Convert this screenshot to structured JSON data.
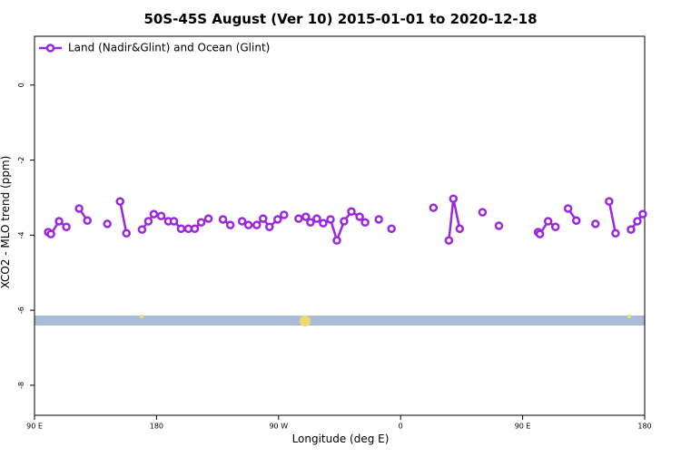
{
  "chart_data": {
    "type": "line",
    "title": "50S-45S August (Ver 10)   2015-01-01 to 2020-12-18",
    "x_label": "Longitude (deg E)",
    "y_label": "XCO2 - MLO trend (ppm)",
    "xlim": [
      90,
      540
    ],
    "ylim": [
      -8.8,
      1.3
    ],
    "xticks": [
      {
        "value": 90,
        "label": "90 E"
      },
      {
        "value": 180,
        "label": "180"
      },
      {
        "value": 270,
        "label": "90 W"
      },
      {
        "value": 360,
        "label": "0"
      },
      {
        "value": 450,
        "label": "90 E"
      },
      {
        "value": 540,
        "label": "180"
      }
    ],
    "yticks": [
      0,
      -2,
      -4,
      -6,
      -8
    ],
    "legend": "top-left",
    "series": [
      {
        "name": "Land (Nadir&Glint) and Ocean (Glint)",
        "color": "#9b27e0",
        "x": [
          100.1,
          102.1,
          108.1,
          113.5,
          null,
          122.9,
          129.0,
          null,
          143.7,
          null,
          153.1,
          157.8,
          null,
          169.3,
          174.0,
          178.0,
          183.4,
          188.7,
          192.8,
          198.1,
          203.5,
          208.2,
          212.9,
          218.3,
          null,
          229.0,
          234.4,
          null,
          243.1,
          247.8,
          253.9,
          258.6,
          263.3,
          269.3,
          274.0,
          null,
          284.8,
          290.1,
          293.5,
          298.2,
          302.9,
          308.3,
          313.0,
          318.3,
          323.7,
          329.8,
          333.8,
          null,
          343.9,
          null,
          353.3,
          null,
          384.2,
          null,
          395.6,
          398.9,
          403.6,
          null,
          420.4,
          null,
          432.5,
          null,
          461.4,
          462.7,
          468.8,
          474.2,
          null,
          483.5,
          489.6,
          null,
          503.7,
          null,
          513.8,
          518.5,
          null,
          529.9,
          534.6,
          538.6
        ],
        "values": [
          -3.92,
          -3.97,
          -3.63,
          -3.78,
          null,
          -3.29,
          -3.61,
          null,
          -3.7,
          null,
          -3.1,
          -3.95,
          null,
          -3.85,
          -3.63,
          -3.44,
          -3.49,
          -3.63,
          -3.63,
          -3.83,
          -3.83,
          -3.83,
          -3.66,
          -3.56,
          null,
          -3.58,
          -3.73,
          null,
          -3.63,
          -3.73,
          -3.73,
          -3.56,
          -3.78,
          -3.58,
          -3.46,
          null,
          -3.56,
          -3.51,
          -3.66,
          -3.56,
          -3.68,
          -3.58,
          -4.14,
          -3.63,
          -3.37,
          -3.51,
          -3.66,
          null,
          -3.58,
          null,
          -3.83,
          null,
          -3.27,
          null,
          -4.14,
          -3.03,
          -3.83,
          null,
          -3.39,
          null,
          -3.75,
          null,
          -3.92,
          -3.97,
          -3.63,
          -3.78,
          null,
          -3.29,
          -3.61,
          null,
          -3.7,
          null,
          -3.1,
          -3.95,
          null,
          -3.85,
          -3.63,
          -3.44
        ]
      }
    ]
  }
}
